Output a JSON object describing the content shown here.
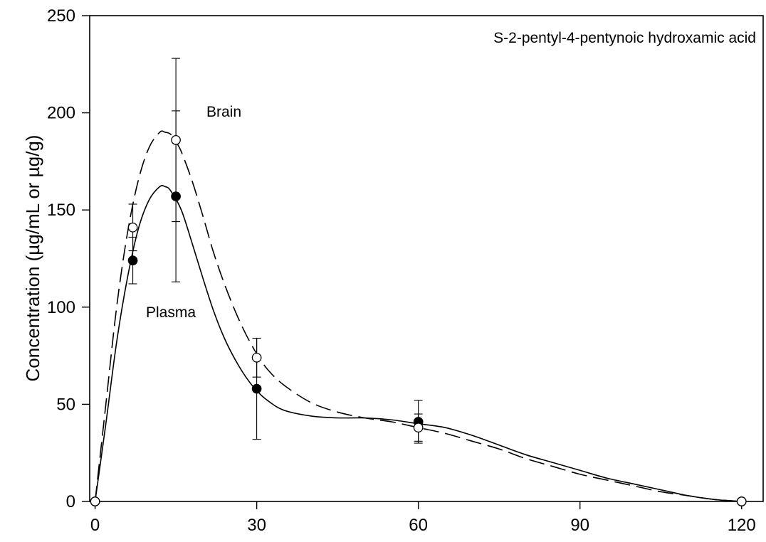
{
  "chart_data": {
    "type": "line",
    "annotation": "S-2-pentyl-4-pentynoic hydroxamic acid",
    "ylabel": "Concentration (µg/mL or µg/g)",
    "xlabel": "",
    "xlim": [
      -1,
      124
    ],
    "ylim": [
      0,
      250
    ],
    "x_ticks": [
      0,
      30,
      60,
      90,
      120
    ],
    "y_ticks": [
      0,
      50,
      100,
      150,
      200,
      250
    ],
    "grid": false,
    "series": [
      {
        "name": "Plasma",
        "marker": "filled-circle",
        "line_style": "solid",
        "color": "#000000",
        "points": [
          {
            "x": 0,
            "y": 0,
            "err": 0
          },
          {
            "x": 7,
            "y": 124,
            "err": 12
          },
          {
            "x": 15,
            "y": 157,
            "err": 44
          },
          {
            "x": 30,
            "y": 58,
            "err": 26
          },
          {
            "x": 60,
            "y": 41,
            "err": 11
          },
          {
            "x": 120,
            "y": 0,
            "err": 0
          }
        ],
        "curve": [
          [
            0,
            0
          ],
          [
            2,
            40
          ],
          [
            4,
            82
          ],
          [
            6,
            115
          ],
          [
            8,
            140
          ],
          [
            10,
            155
          ],
          [
            12,
            162
          ],
          [
            13,
            162
          ],
          [
            14,
            160
          ],
          [
            16,
            150
          ],
          [
            18,
            133
          ],
          [
            20,
            115
          ],
          [
            22,
            98
          ],
          [
            24,
            84
          ],
          [
            26,
            73
          ],
          [
            28,
            64
          ],
          [
            30,
            57
          ],
          [
            32,
            52
          ],
          [
            35,
            47
          ],
          [
            40,
            44
          ],
          [
            45,
            43
          ],
          [
            50,
            43
          ],
          [
            55,
            42
          ],
          [
            60,
            40
          ],
          [
            65,
            38
          ],
          [
            70,
            34
          ],
          [
            75,
            29
          ],
          [
            80,
            24
          ],
          [
            85,
            20
          ],
          [
            90,
            16
          ],
          [
            95,
            12
          ],
          [
            100,
            9
          ],
          [
            105,
            6
          ],
          [
            110,
            3
          ],
          [
            115,
            1
          ],
          [
            120,
            0
          ]
        ]
      },
      {
        "name": "Brain",
        "marker": "open-circle",
        "line_style": "dashed",
        "color": "#000000",
        "points": [
          {
            "x": 0,
            "y": 0,
            "err": 0
          },
          {
            "x": 7,
            "y": 141,
            "err": 12
          },
          {
            "x": 15,
            "y": 186,
            "err": 42
          },
          {
            "x": 30,
            "y": 74,
            "err": 10
          },
          {
            "x": 60,
            "y": 38,
            "err": 7
          },
          {
            "x": 120,
            "y": 0,
            "err": 0
          }
        ],
        "curve": [
          [
            0,
            0
          ],
          [
            2,
            50
          ],
          [
            4,
            100
          ],
          [
            6,
            138
          ],
          [
            8,
            165
          ],
          [
            10,
            182
          ],
          [
            12,
            190
          ],
          [
            13,
            190
          ],
          [
            14,
            189
          ],
          [
            15,
            185
          ],
          [
            16,
            180
          ],
          [
            18,
            165
          ],
          [
            20,
            147
          ],
          [
            22,
            128
          ],
          [
            24,
            112
          ],
          [
            26,
            98
          ],
          [
            28,
            86
          ],
          [
            30,
            76
          ],
          [
            32,
            68
          ],
          [
            35,
            60
          ],
          [
            40,
            51
          ],
          [
            45,
            46
          ],
          [
            50,
            43
          ],
          [
            55,
            41
          ],
          [
            60,
            38
          ],
          [
            65,
            35
          ],
          [
            70,
            31
          ],
          [
            75,
            27
          ],
          [
            80,
            22
          ],
          [
            85,
            18
          ],
          [
            90,
            14
          ],
          [
            95,
            11
          ],
          [
            100,
            8
          ],
          [
            105,
            5
          ],
          [
            110,
            3
          ],
          [
            115,
            1
          ],
          [
            120,
            0
          ]
        ]
      }
    ]
  }
}
